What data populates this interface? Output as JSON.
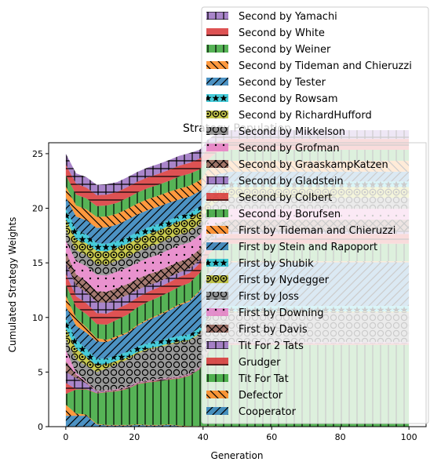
{
  "chart_data": {
    "type": "area",
    "title": "Strategy Population",
    "xlabel": "Generation",
    "ylabel": "Cumulated Strategy Weights",
    "xlim": [
      -5,
      105
    ],
    "ylim": [
      0,
      26
    ],
    "xticks": [
      "0",
      "20",
      "40",
      "60",
      "80",
      "100"
    ],
    "yticks": [
      "0",
      "5",
      "10",
      "15",
      "20",
      "25"
    ],
    "grid": false,
    "legend_position": "upper-right",
    "x": [
      0,
      3,
      6,
      9,
      12,
      15,
      18,
      21,
      24,
      27,
      30,
      33,
      36,
      39,
      40,
      41,
      42,
      44,
      48,
      60,
      80,
      100
    ],
    "series": [
      {
        "name": "Cooperator",
        "color": "#1f77b4",
        "pattern": "slash",
        "values": [
          1.0,
          1.0,
          1.0,
          0.2,
          0.1,
          0.1,
          0.1,
          0.15,
          0.1,
          0.1,
          0.15,
          0.05,
          0.0,
          0.0,
          0.0,
          0.0,
          0.0,
          0.0,
          0.0,
          0.0,
          0.0,
          0.0
        ]
      },
      {
        "name": "Defector",
        "color": "#ff7f0e",
        "pattern": "backslash",
        "values": [
          1.0,
          0.2,
          0.1,
          0.05,
          0.05,
          0.05,
          0.05,
          0.05,
          0.05,
          0.05,
          0.05,
          0.05,
          0.05,
          0.05,
          0.05,
          0.05,
          0.05,
          0.05,
          0.0,
          0.0,
          0.0,
          0.0
        ]
      },
      {
        "name": "Tit For Tat",
        "color": "#2ca02c",
        "pattern": "vline",
        "values": [
          1.0,
          2.2,
          2.3,
          2.8,
          3.0,
          3.1,
          3.3,
          3.7,
          3.9,
          4.0,
          4.1,
          4.3,
          4.6,
          5.2,
          5.8,
          6.5,
          7.0,
          7.3,
          7.5,
          7.5,
          7.5,
          7.5
        ]
      },
      {
        "name": "Grudger",
        "color": "#d62728",
        "pattern": "dash",
        "values": [
          1.0,
          0.05,
          0.05,
          0.05,
          0.05,
          0.05,
          0.05,
          0.05,
          0.05,
          0.05,
          0.05,
          0.05,
          0.05,
          0.05,
          0.05,
          0.1,
          0.1,
          0.1,
          0.1,
          0.1,
          0.1,
          0.1
        ]
      },
      {
        "name": "Tit For 2 Tats",
        "color": "#9467bd",
        "pattern": "plus",
        "values": [
          1.0,
          1.0,
          0.5,
          0.1,
          0.05,
          0.05,
          0.05,
          0.05,
          0.05,
          0.05,
          0.05,
          0.05,
          0.05,
          0.05,
          0.05,
          0.05,
          0.05,
          0.05,
          0.05,
          0.05,
          0.05,
          0.05
        ]
      },
      {
        "name": "First by Davis",
        "color": "#8c564b",
        "pattern": "x",
        "values": [
          1.0,
          0.3,
          0.1,
          0.05,
          0.05,
          0.05,
          0.05,
          0.05,
          0.05,
          0.05,
          0.05,
          0.05,
          0.05,
          0.05,
          0.05,
          0.05,
          0.05,
          0.05,
          0.05,
          0.05,
          0.05,
          0.05
        ]
      },
      {
        "name": "First by Downing",
        "color": "#e377c2",
        "pattern": "dot",
        "values": [
          1.0,
          0.2,
          0.05,
          0.05,
          0.05,
          0.05,
          0.05,
          0.05,
          0.05,
          0.05,
          0.05,
          0.05,
          0.05,
          0.05,
          0.05,
          0.05,
          0.05,
          0.05,
          0.05,
          0.05,
          0.05,
          0.05
        ]
      },
      {
        "name": "First by Joss",
        "color": "#7f7f7f",
        "pattern": "circle",
        "values": [
          1.0,
          1.2,
          1.5,
          1.7,
          2.0,
          2.3,
          2.5,
          2.6,
          2.8,
          2.9,
          3.0,
          3.1,
          3.0,
          3.0,
          2.9,
          2.8,
          2.7,
          2.7,
          2.7,
          2.7,
          2.7,
          2.7
        ]
      },
      {
        "name": "First by Nydegger",
        "color": "#bcbd22",
        "pattern": "ring",
        "values": [
          1.0,
          1.0,
          0.8,
          0.6,
          0.4,
          0.3,
          0.2,
          0.15,
          0.1,
          0.1,
          0.1,
          0.1,
          0.1,
          0.1,
          0.1,
          0.1,
          0.1,
          0.1,
          0.1,
          0.1,
          0.1,
          0.1
        ]
      },
      {
        "name": "First by Shubik",
        "color": "#17becf",
        "pattern": "star",
        "values": [
          1.0,
          0.8,
          0.7,
          0.6,
          0.5,
          0.5,
          0.5,
          0.5,
          0.5,
          0.5,
          0.5,
          0.5,
          0.5,
          0.5,
          0.5,
          0.5,
          0.5,
          0.5,
          0.5,
          0.5,
          0.5,
          0.5
        ]
      },
      {
        "name": "First by Stein and Rapoport",
        "color": "#1f77b4",
        "pattern": "slash",
        "values": [
          1.0,
          1.3,
          1.5,
          1.6,
          1.5,
          1.6,
          1.7,
          1.9,
          2.1,
          2.3,
          2.5,
          2.8,
          3.0,
          3.3,
          3.4,
          3.5,
          3.6,
          3.8,
          4.0,
          4.0,
          4.0,
          4.0
        ]
      },
      {
        "name": "First by Tideman and Chieruzzi",
        "color": "#ff7f0e",
        "pattern": "backslash",
        "values": [
          1.0,
          0.7,
          0.5,
          0.3,
          0.2,
          0.15,
          0.1,
          0.1,
          0.1,
          0.1,
          0.1,
          0.1,
          0.1,
          0.1,
          0.1,
          0.1,
          0.1,
          0.1,
          0.1,
          0.1,
          0.1,
          0.1
        ]
      },
      {
        "name": "Second by Borufsen",
        "color": "#2ca02c",
        "pattern": "vline",
        "values": [
          1.0,
          1.0,
          1.2,
          1.3,
          1.4,
          1.5,
          1.6,
          1.6,
          1.6,
          1.6,
          1.6,
          1.6,
          1.6,
          1.6,
          1.6,
          1.6,
          1.6,
          1.6,
          1.6,
          1.6,
          1.6,
          1.6
        ]
      },
      {
        "name": "Second by Colbert",
        "color": "#d62728",
        "pattern": "dash",
        "values": [
          1.0,
          1.0,
          1.0,
          1.0,
          1.0,
          1.0,
          1.0,
          0.9,
          0.9,
          0.9,
          0.9,
          0.9,
          0.9,
          0.9,
          0.9,
          0.9,
          0.9,
          0.9,
          0.9,
          0.9,
          0.9,
          0.9
        ]
      },
      {
        "name": "Second by Gladstein",
        "color": "#9467bd",
        "pattern": "plus",
        "values": [
          1.0,
          1.0,
          1.0,
          1.0,
          1.0,
          0.9,
          0.8,
          0.7,
          0.6,
          0.5,
          0.5,
          0.4,
          0.4,
          0.3,
          0.3,
          0.3,
          0.3,
          0.3,
          0.3,
          0.3,
          0.3,
          0.3
        ]
      },
      {
        "name": "Second by GraaskampKatzen",
        "color": "#8c564b",
        "pattern": "x",
        "values": [
          1.0,
          1.0,
          1.0,
          1.0,
          1.0,
          1.0,
          1.0,
          1.0,
          1.0,
          1.0,
          1.0,
          1.0,
          1.0,
          1.0,
          1.0,
          1.0,
          1.0,
          1.0,
          1.0,
          1.0,
          1.0,
          1.0
        ]
      },
      {
        "name": "Second by Grofman",
        "color": "#e377c2",
        "pattern": "dot",
        "values": [
          1.0,
          1.2,
          1.4,
          1.5,
          1.5,
          1.5,
          1.5,
          1.5,
          1.5,
          1.5,
          1.5,
          1.5,
          1.4,
          1.3,
          1.2,
          1.1,
          1.0,
          1.0,
          1.0,
          1.0,
          1.0,
          1.0
        ]
      },
      {
        "name": "Second by Mikkelson",
        "color": "#7f7f7f",
        "pattern": "circle",
        "values": [
          1.0,
          1.0,
          1.0,
          1.0,
          1.0,
          1.0,
          1.0,
          1.0,
          1.0,
          1.0,
          1.0,
          1.0,
          1.0,
          1.0,
          1.0,
          1.0,
          1.0,
          1.0,
          1.0,
          1.0,
          1.0,
          1.0
        ]
      },
      {
        "name": "Second by RichardHufford",
        "color": "#bcbd22",
        "pattern": "ring",
        "values": [
          1.0,
          1.0,
          1.1,
          1.2,
          1.2,
          1.2,
          1.2,
          1.2,
          1.2,
          1.2,
          1.2,
          1.2,
          1.2,
          1.1,
          1.0,
          1.0,
          1.0,
          1.0,
          1.0,
          1.0,
          1.0,
          1.0
        ]
      },
      {
        "name": "Second by Rowsam",
        "color": "#17becf",
        "pattern": "star",
        "values": [
          1.0,
          0.9,
          0.8,
          0.7,
          0.7,
          0.6,
          0.6,
          0.6,
          0.6,
          0.6,
          0.5,
          0.5,
          0.5,
          0.5,
          0.5,
          0.5,
          0.5,
          0.5,
          0.5,
          0.5,
          0.5,
          0.5
        ]
      },
      {
        "name": "Second by Tester",
        "color": "#1f77b4",
        "pattern": "slash",
        "values": [
          1.0,
          1.2,
          1.3,
          1.4,
          1.5,
          1.5,
          1.6,
          1.6,
          1.6,
          1.6,
          1.6,
          1.5,
          1.5,
          1.4,
          1.3,
          1.2,
          1.0,
          1.0,
          0.9,
          0.9,
          0.9,
          0.9
        ]
      },
      {
        "name": "Second by Tideman and Chieruzzi",
        "color": "#ff7f0e",
        "pattern": "backslash",
        "values": [
          1.0,
          1.0,
          1.0,
          1.0,
          1.0,
          1.0,
          1.0,
          1.0,
          1.0,
          1.0,
          1.0,
          1.0,
          1.0,
          1.0,
          1.0,
          1.0,
          1.0,
          1.0,
          1.0,
          1.0,
          1.0,
          1.0
        ]
      },
      {
        "name": "Second by Weiner",
        "color": "#2ca02c",
        "pattern": "vline",
        "values": [
          1.0,
          1.0,
          1.0,
          1.0,
          1.0,
          1.0,
          1.0,
          1.0,
          1.0,
          1.0,
          1.0,
          1.1,
          1.1,
          1.0,
          1.0,
          1.0,
          1.0,
          1.0,
          1.0,
          1.0,
          1.0,
          1.0
        ]
      },
      {
        "name": "Second by White",
        "color": "#d62728",
        "pattern": "dash",
        "values": [
          1.0,
          1.0,
          1.0,
          1.0,
          1.0,
          1.0,
          1.0,
          1.0,
          1.0,
          1.0,
          1.0,
          1.0,
          1.0,
          1.0,
          1.0,
          1.0,
          1.0,
          1.0,
          1.0,
          1.0,
          1.0,
          1.0
        ]
      },
      {
        "name": "Second by Yamachi",
        "color": "#9467bd",
        "pattern": "plus",
        "values": [
          1.0,
          0.95,
          0.95,
          0.95,
          0.95,
          0.9,
          0.9,
          0.9,
          0.9,
          0.9,
          0.9,
          0.9,
          0.9,
          0.8,
          0.8,
          0.8,
          0.8,
          0.8,
          0.8,
          0.8,
          0.8,
          0.8
        ]
      }
    ]
  }
}
